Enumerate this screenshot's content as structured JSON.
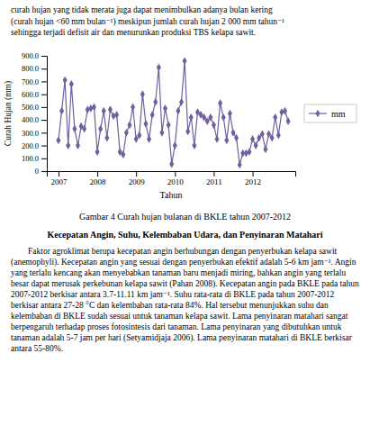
{
  "paragraph_above": "curah hujan yang tidak merata juga dapat menimbulkan adanya bulan kering\n(curah hujan <60 mm bulan⁻¹) meskipun jumlah curah hujan 2 000 mm tahun⁻¹\nsehingga terjadi defisit air dan menurunkan produksi TBS kelapa sawit.",
  "heading": "Kecepatan Angin, Suhu, Kelembaban Udara, dan Penyinaran Matahari",
  "paragraph_below": "        Faktor agroklimat berupa kecepatan angin berhubungan dengan penyerbukan kelapa sawit (anemophyli). Kecepatan angin yang sesuai dengan penyerbukan efektif adalah 5-6 km jam⁻¹. Angin yang terlalu kencang akan menyebabkan tanaman baru menjadi miring, bahkan angin yang terlalu besar dapat merusak perkebunan kelapa sawit (Pahan 2008). Kecepatan angin pada BKLE pada tahun 2007-2012 berkisar antara 3.7-11.11 km jam⁻¹. Suhu rata-rata di BKLE pada tahun 2007-2012 berkisar antara 27-28 °C dan kelembaban rata-rata 84%. Hal tersebut menunjukkan suhu dan kelembaban di BKLE sudah sesuai untuk tanaman kelapa sawit. Lama penyinaran matahari sangat berpengaruh terhadap proses fotosintesis dari tanaman. Lama penyinaran yang dibutuhkan untuk tanaman adalah 5-7 jam per hari (Setyamidjaja 2006). Lama penyinaran matahari di BKLE berkisar antara 55-80%.",
  "chart_data": {
    "type": "line",
    "title": "Gambar 4 Curah hujan bulanan di BKLE tahun 2007-2012",
    "xlabel": "Tahun",
    "ylabel": "Curah Hujan (mm)",
    "x": [
      2007,
      2007.0833333333333,
      2007.1666666666667,
      2007.25,
      2007.3333333333333,
      2007.4166666666667,
      2007.5,
      2007.5833333333333,
      2007.6666666666667,
      2007.75,
      2007.8333333333333,
      2007.9166666666667,
      2008,
      2008.0833333333333,
      2008.1666666666667,
      2008.25,
      2008.3333333333333,
      2008.4166666666667,
      2008.5,
      2008.5833333333333,
      2008.6666666666667,
      2008.75,
      2008.8333333333333,
      2008.9166666666667,
      2009,
      2009.0833333333333,
      2009.1666666666667,
      2009.25,
      2009.3333333333333,
      2009.4166666666667,
      2009.5,
      2009.5833333333333,
      2009.6666666666667,
      2009.75,
      2009.8333333333333,
      2009.9166666666667,
      2010,
      2010.0833333333333,
      2010.1666666666667,
      2010.25,
      2010.3333333333333,
      2010.4166666666667,
      2010.5,
      2010.5833333333333,
      2010.6666666666667,
      2010.75,
      2010.8333333333333,
      2010.9166666666667,
      2011,
      2011.0833333333333,
      2011.1666666666667,
      2011.25,
      2011.3333333333333,
      2011.4166666666667,
      2011.5,
      2011.5833333333333,
      2011.6666666666667,
      2011.75,
      2011.8333333333333,
      2011.9166666666667,
      2012,
      2012.0833333333333,
      2012.1666666666667,
      2012.25,
      2012.3333333333333,
      2012.4166666666667,
      2012.5,
      2012.5833333333333,
      2012.6666666666667,
      2012.75,
      2012.8333333333333,
      2012.9166666666667
    ],
    "series": [
      {
        "name": "mm",
        "color": "#7060A0",
        "marker": "diamond",
        "values": [
          240,
          470,
          710,
          200,
          680,
          330,
          200,
          350,
          330,
          480,
          490,
          500,
          150,
          330,
          470,
          260,
          480,
          430,
          440,
          150,
          130,
          300,
          360,
          500,
          250,
          280,
          600,
          370,
          250,
          440,
          540,
          810,
          300,
          490,
          360,
          55,
          200,
          470,
          540,
          860,
          310,
          420,
          200,
          460,
          440,
          420,
          390,
          420,
          360,
          250,
          530,
          420,
          240,
          450,
          300,
          260,
          50,
          140,
          140,
          150,
          250,
          200,
          260,
          290,
          170,
          290,
          260,
          420,
          280,
          460,
          470,
          390
        ]
      }
    ],
    "xlim": [
      2006.7,
      2013.1
    ],
    "xticks": [
      2007,
      2008,
      2009,
      2010,
      2011,
      2012
    ],
    "ylim": [
      0,
      900
    ],
    "yticks": [
      0,
      {
        "value": 100,
        "label": "100.0"
      },
      {
        "value": 200,
        "label": "200.0"
      },
      {
        "value": 300,
        "label": "300.0"
      },
      {
        "value": 400,
        "label": "400.0"
      },
      {
        "value": 500,
        "label": "500.0"
      },
      {
        "value": 600,
        "label": "600.0"
      },
      {
        "value": 700,
        "label": "700.0"
      },
      {
        "value": 800,
        "label": "800.0"
      },
      {
        "value": 900,
        "label": "900.0"
      }
    ],
    "grid": false,
    "legend": "right"
  }
}
